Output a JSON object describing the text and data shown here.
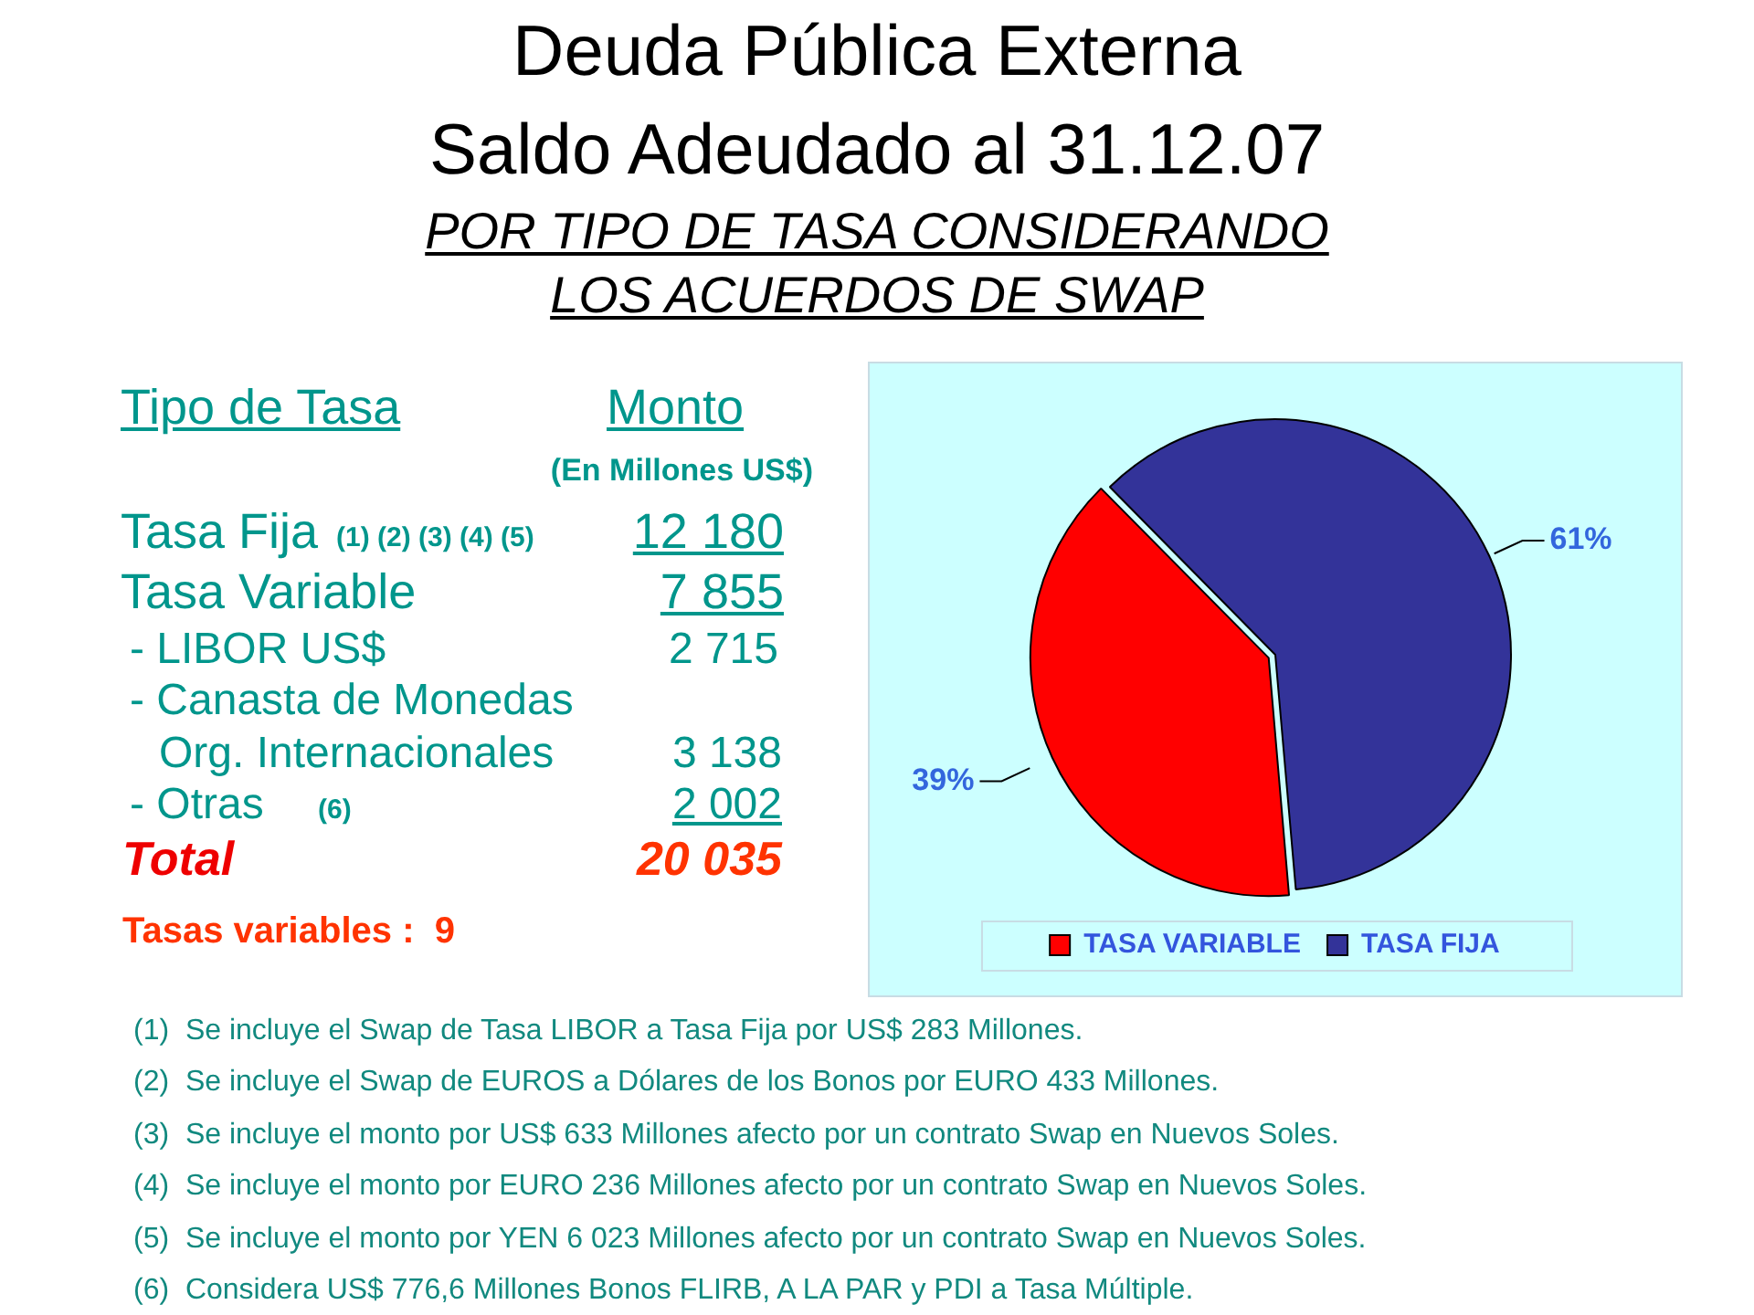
{
  "chart_data": {
    "type": "pie",
    "title": "Deuda Pública Externa",
    "subtitle": "Saldo Adeudado al 31.12.07",
    "categories": [
      "TASA VARIABLE",
      "TASA FIJA"
    ],
    "values": [
      39,
      61
    ],
    "colors": [
      "#ff0000",
      "#333399"
    ],
    "value_labels": [
      "39%",
      "61%"
    ],
    "legend": "bottom",
    "annotations": [
      "POR TIPO DE TASA CONSIDERANDO LOS ACUERDOS DE SWAP",
      "Tipo de Tasa",
      "Monto",
      "(En Millones US$)",
      "Tasa Fija",
      "(1) (2) (3) (4) (5)",
      "12 180",
      "Tasa Variable",
      "7 855",
      "- LIBOR US$",
      "2 715",
      "- Canasta de Monedas",
      "Org. Internacionales",
      "3 138",
      "- Otras",
      "(6)",
      "2 002",
      "Total",
      "20 035",
      "Tasas variables :  9",
      "(1)  Se incluye el Swap de Tasa LIBOR a Tasa Fija por US$ 283 Millones.",
      "(2)  Se incluye el Swap de EUROS a Dólares de los Bonos por EURO 433 Millones.",
      "(3)  Se incluye el monto por US$ 633 Millones afecto por un contrato Swap en Nuevos Soles.",
      "(4)  Se incluye el monto por EURO 236 Millones afecto por un contrato Swap en Nuevos Soles.",
      "(5)  Se incluye el monto por YEN 6 023 Millones afecto por un contrato Swap en Nuevos Soles.",
      "(6)  Considera US$ 776,6 Millones Bonos FLIRB, A LA PAR y PDI a Tasa Múltiple."
    ]
  }
}
